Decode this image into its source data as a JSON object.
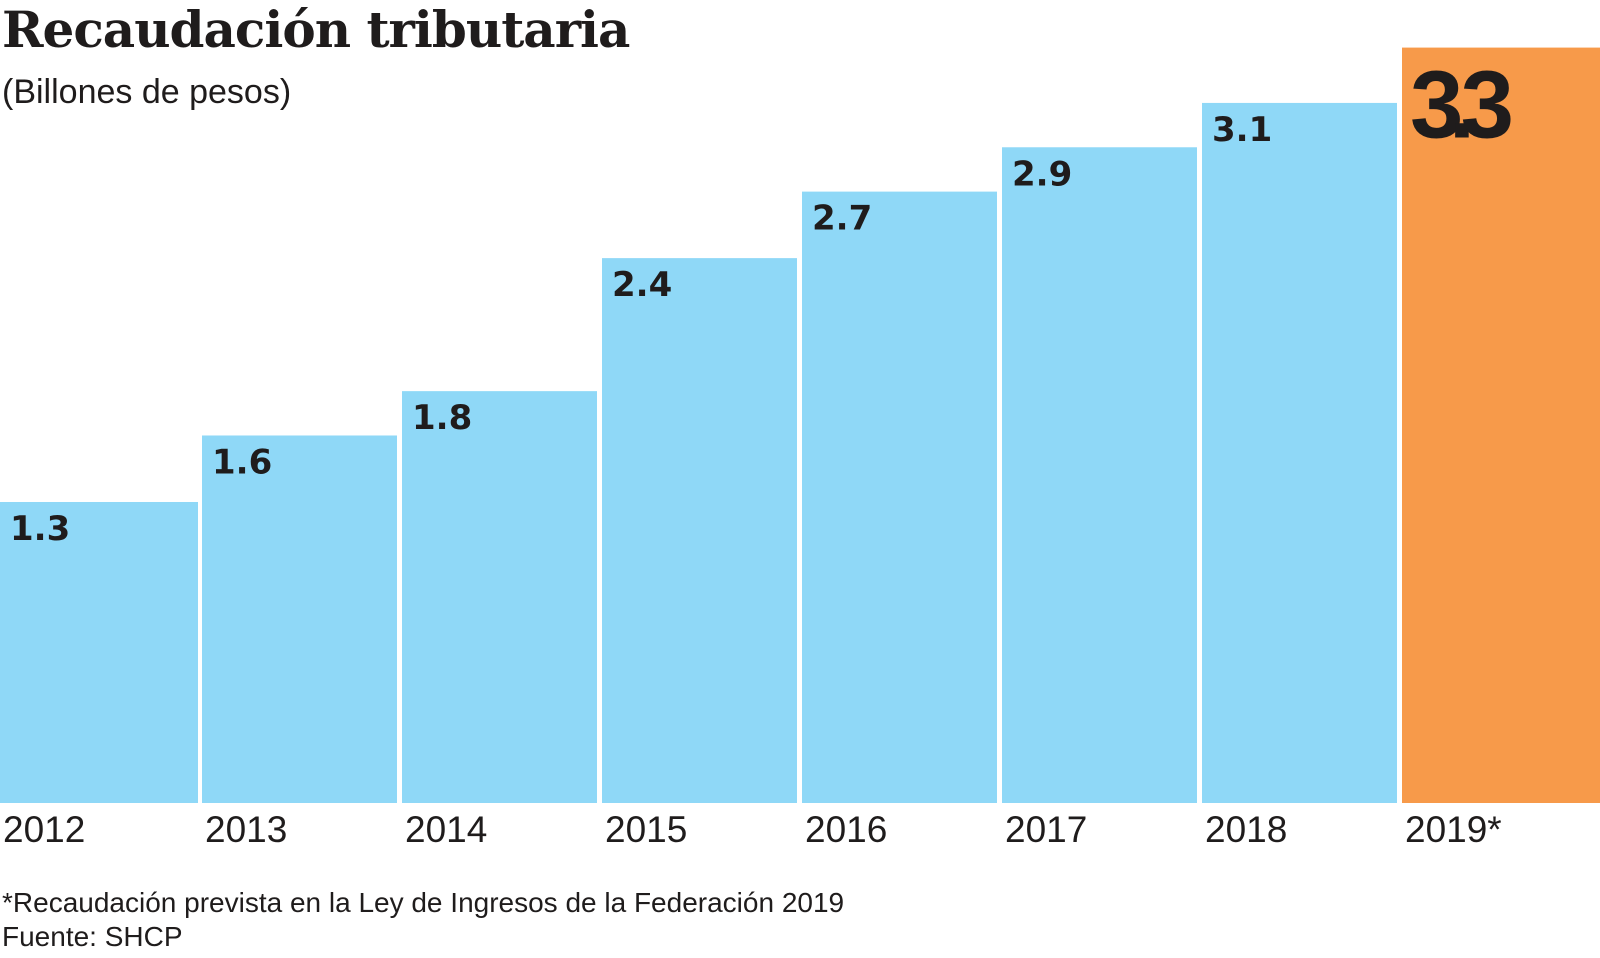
{
  "chart_data": {
    "type": "bar",
    "title": "Recaudación tributaria",
    "subtitle": "(Billones de pesos)",
    "xlabel": "",
    "ylabel": "Billones de pesos",
    "categories": [
      "2012",
      "2013",
      "2014",
      "2015",
      "2016",
      "2017",
      "2018",
      "2019*"
    ],
    "values": [
      1.3,
      1.6,
      1.8,
      2.4,
      2.7,
      2.9,
      3.1,
      3.3
    ],
    "value_labels": [
      "1.3",
      "1.6",
      "1.8",
      "2.4",
      "2.7",
      "2.9",
      "3.1",
      "3.3"
    ],
    "highlight_index": 7,
    "colors": {
      "bar": "#8fd8f7",
      "highlight": "#f79a4a",
      "text": "#1f1c1c"
    },
    "grid": false,
    "legend": "none",
    "notes": [
      "*Recaudación prevista en la Ley de Ingresos de la Federación 2019",
      "Fuente: SHCP"
    ]
  }
}
